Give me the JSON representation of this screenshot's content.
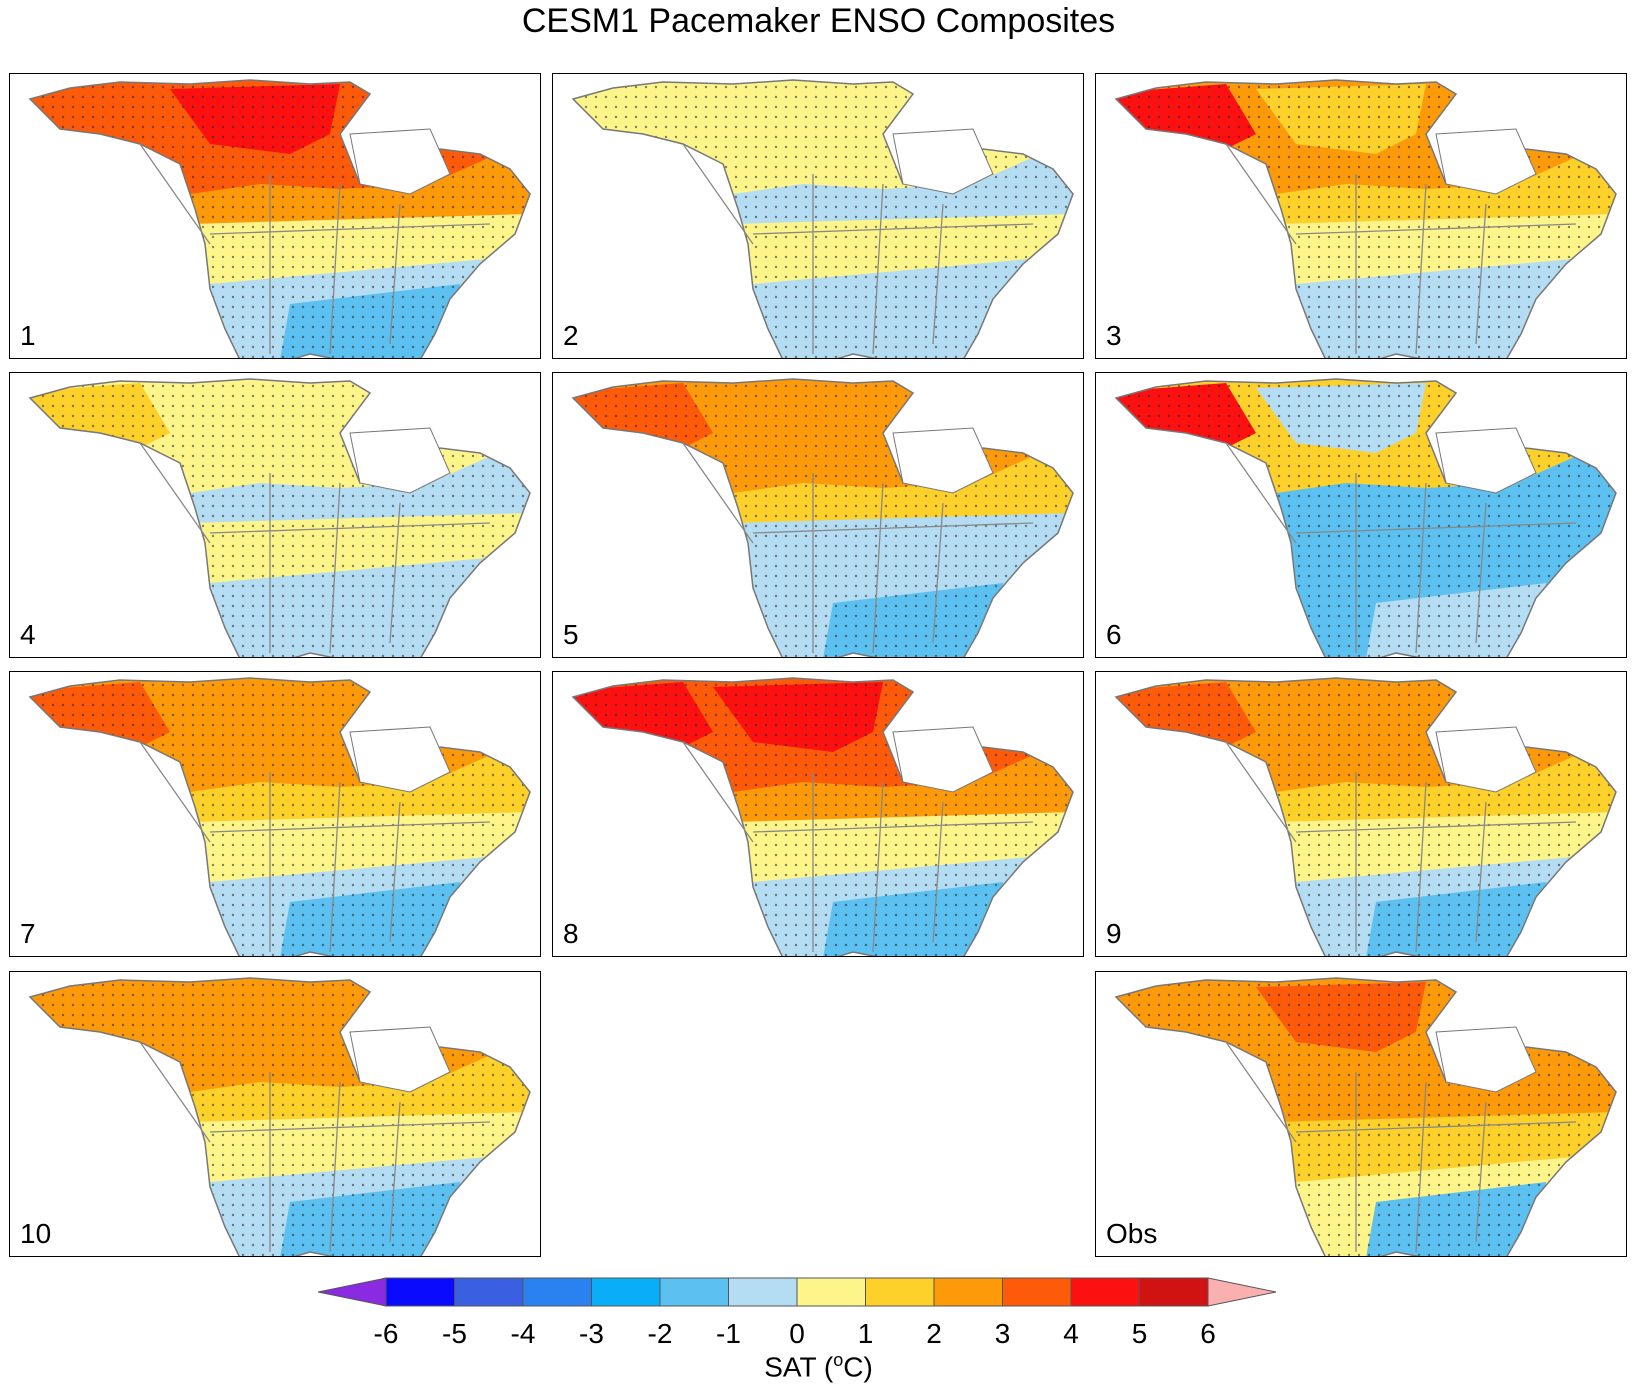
{
  "title": "CESM1 Pacemaker ENSO Composites",
  "panels": [
    {
      "label": "1",
      "pattern": "warmnorth_strong"
    },
    {
      "label": "2",
      "pattern": "weak"
    },
    {
      "label": "3",
      "pattern": "alaska_hot"
    },
    {
      "label": "4",
      "pattern": "weak_warm"
    },
    {
      "label": "5",
      "pattern": "warm_cold_east"
    },
    {
      "label": "6",
      "pattern": "alaska_hot_cold_center"
    },
    {
      "label": "7",
      "pattern": "warmnorth"
    },
    {
      "label": "8",
      "pattern": "alaska_very_hot"
    },
    {
      "label": "9",
      "pattern": "warmnorth"
    },
    {
      "label": "10",
      "pattern": "warmnorth_mild"
    },
    {
      "label": "Obs",
      "pattern": "obs"
    }
  ],
  "colorbar": {
    "label": "SAT (",
    "unit_sup": "o",
    "unit_tail": "C)",
    "ticks": [
      "-6",
      "-5",
      "-4",
      "-3",
      "-2",
      "-1",
      "0",
      "1",
      "2",
      "3",
      "4",
      "5",
      "6"
    ],
    "colors": {
      "below": "#8a2be2",
      "bins": [
        "#0a0aff",
        "#3a5fe0",
        "#2a82f0",
        "#0aaef8",
        "#5cc0f0",
        "#b4dcf2",
        "#fdf58a",
        "#fdd02a",
        "#fd9a0a",
        "#fd5a0a",
        "#fd1010",
        "#d01212"
      ],
      "above": "#fbb0b0"
    }
  }
}
